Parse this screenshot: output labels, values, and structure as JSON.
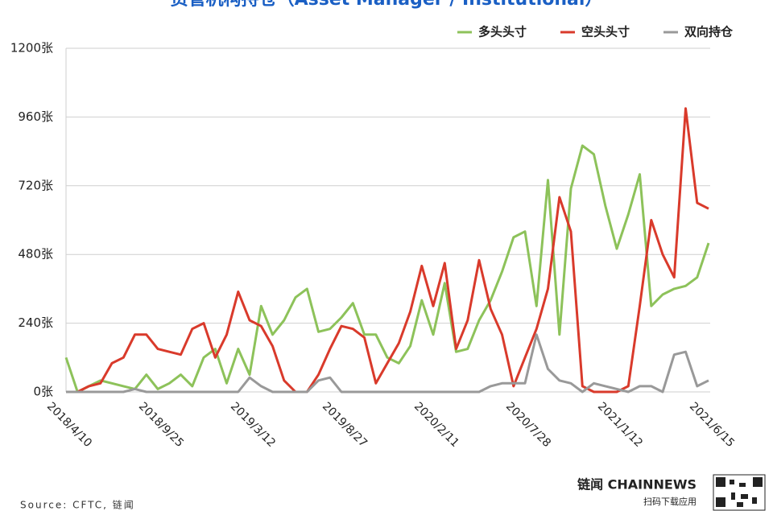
{
  "chart_data": {
    "type": "line",
    "title": "资管机构持仓（Asset Manager / Institutional）",
    "source": "Source: CFTC, 链闻",
    "brand": "链闻 CHAINNEWS",
    "brand_sub": "扫码下载应用",
    "categories": [
      "2018/4/10",
      null,
      null,
      null,
      null,
      null,
      null,
      null,
      "2018/9/25",
      null,
      null,
      null,
      null,
      null,
      null,
      null,
      "2019/3/12",
      null,
      null,
      null,
      null,
      null,
      null,
      null,
      "2019/8/27",
      null,
      null,
      null,
      null,
      null,
      null,
      null,
      "2020/2/11",
      null,
      null,
      null,
      null,
      null,
      null,
      null,
      "2020/7/28",
      null,
      null,
      null,
      null,
      null,
      null,
      null,
      "2021/1/12",
      null,
      null,
      null,
      null,
      null,
      null,
      null,
      "2021/6/15"
    ],
    "series": [
      {
        "name": "多头头寸",
        "color": "#8dc25a",
        "values": [
          120,
          0,
          20,
          40,
          30,
          20,
          10,
          60,
          10,
          30,
          60,
          20,
          120,
          150,
          30,
          150,
          60,
          300,
          200,
          250,
          330,
          360,
          210,
          220,
          260,
          310,
          200,
          200,
          120,
          100,
          160,
          320,
          200,
          380,
          140,
          150,
          250,
          320,
          420,
          540,
          560,
          300,
          740,
          200,
          710,
          860,
          830,
          650,
          500,
          620,
          760,
          300,
          340,
          360,
          370,
          400,
          520
        ]
      },
      {
        "name": "空头头寸",
        "color": "#d93a2b",
        "values": [
          0,
          0,
          20,
          30,
          100,
          120,
          200,
          200,
          150,
          140,
          130,
          220,
          240,
          120,
          200,
          350,
          250,
          230,
          160,
          40,
          0,
          0,
          60,
          150,
          230,
          220,
          190,
          30,
          100,
          170,
          280,
          440,
          300,
          450,
          150,
          250,
          460,
          290,
          200,
          20,
          120,
          220,
          360,
          680,
          560,
          20,
          0,
          0,
          0,
          20,
          300,
          600,
          480,
          400,
          990,
          660,
          640
        ]
      },
      {
        "name": "双向持仓",
        "color": "#999999",
        "values": [
          0,
          0,
          0,
          0,
          0,
          0,
          10,
          0,
          0,
          0,
          0,
          0,
          0,
          0,
          0,
          0,
          50,
          20,
          0,
          0,
          0,
          0,
          40,
          50,
          0,
          0,
          0,
          0,
          0,
          0,
          0,
          0,
          0,
          0,
          0,
          0,
          0,
          20,
          30,
          30,
          30,
          200,
          80,
          40,
          30,
          0,
          30,
          20,
          10,
          0,
          20,
          20,
          0,
          130,
          140,
          20,
          40
        ]
      }
    ],
    "ylim": [
      0,
      1200
    ],
    "yticks": [
      {
        "value": 0,
        "label": "0张"
      },
      {
        "value": 240,
        "label": "240张"
      },
      {
        "value": 480,
        "label": "480张"
      },
      {
        "value": 720,
        "label": "720张"
      },
      {
        "value": 960,
        "label": "960张"
      },
      {
        "value": 1200,
        "label": "1200张"
      }
    ],
    "grid": true,
    "legend": "top-right"
  }
}
